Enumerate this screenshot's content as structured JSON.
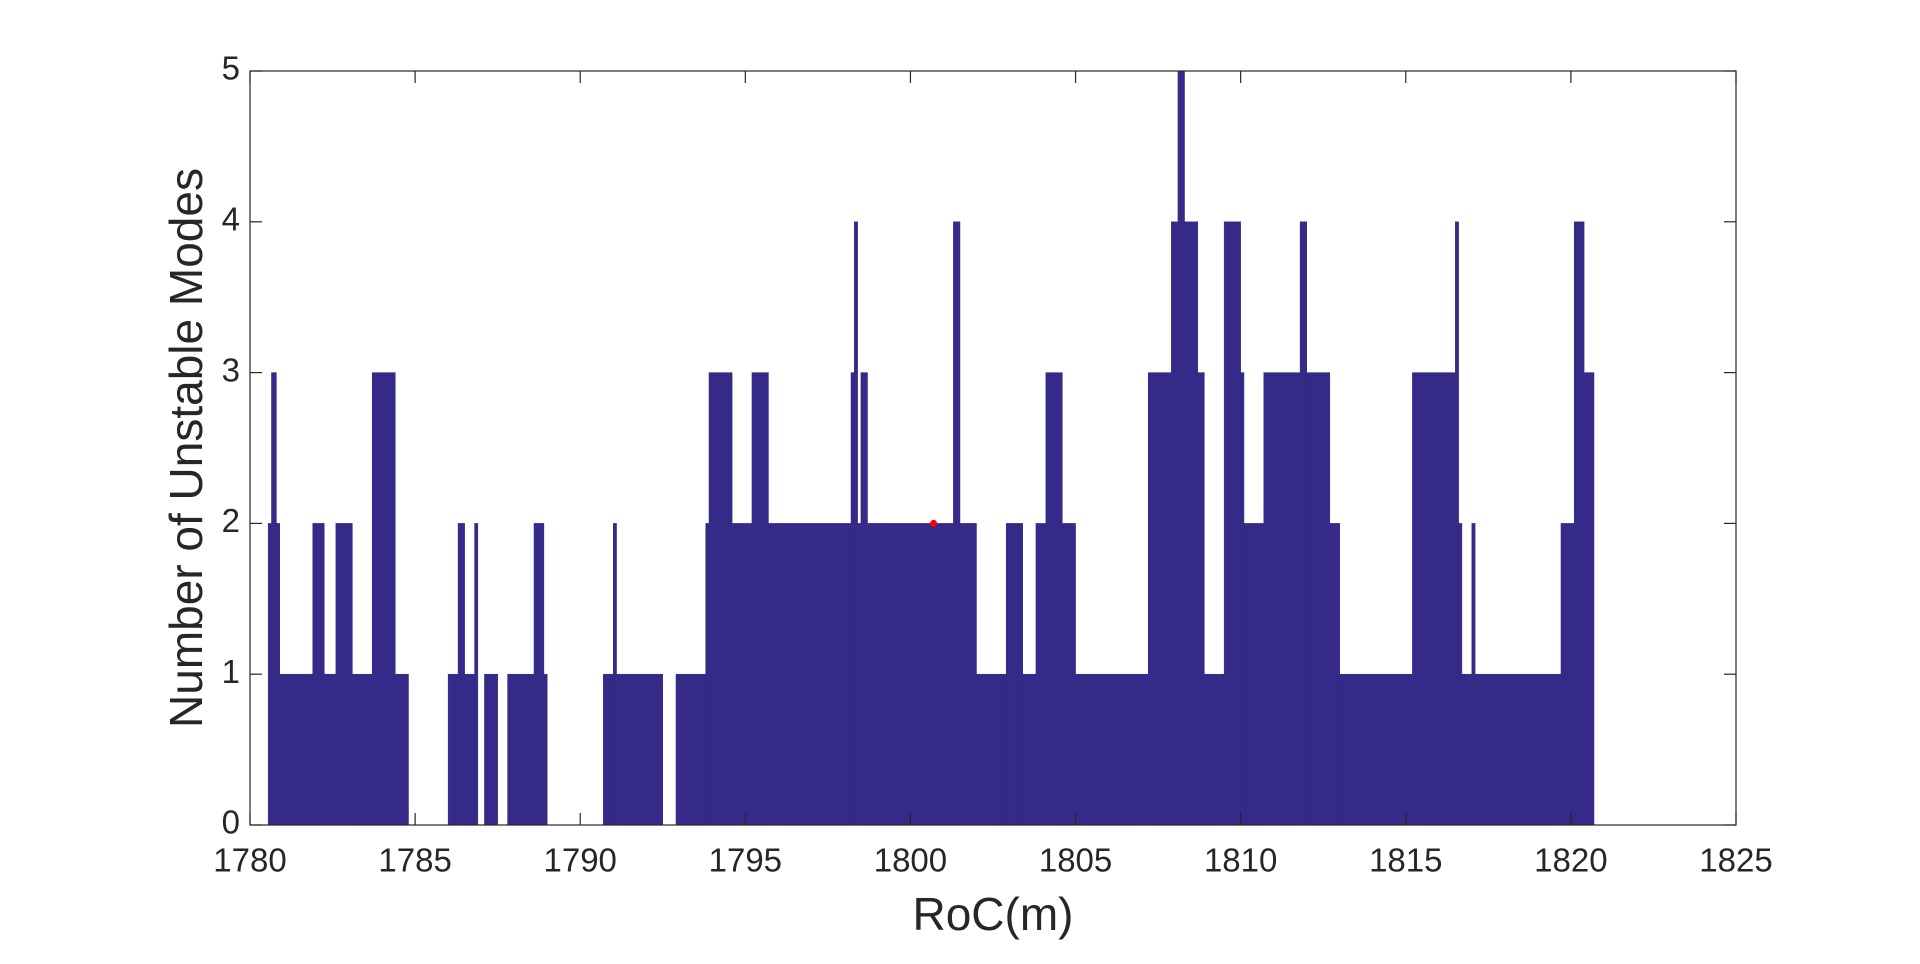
{
  "chart_data": {
    "type": "histogram",
    "xlabel": "RoC(m)",
    "ylabel": "Number of Unstable Modes",
    "bins": [
      1780.55,
      1780.65,
      1780.8,
      1780.9,
      1781.9,
      1782.25,
      1782.6,
      1783.1,
      1783.7,
      1784.4,
      1784.8,
      1786.0,
      1786.3,
      1786.5,
      1786.8,
      1786.9,
      1787.1,
      1787.5,
      1787.8,
      1788.6,
      1788.9,
      1789.0,
      1790.7,
      1791.0,
      1791.1,
      1792.5,
      1792.9,
      1793.8,
      1793.9,
      1794.6,
      1795.2,
      1795.7,
      1798.2,
      1798.3,
      1798.4,
      1798.5,
      1798.7,
      1801.3,
      1801.5,
      1802.0,
      1802.9,
      1803.4,
      1803.8,
      1804.1,
      1804.6,
      1805.0,
      1807.2,
      1807.9,
      1808.1,
      1808.3,
      1808.7,
      1808.9,
      1809.5,
      1810.0,
      1810.1,
      1810.7,
      1811.8,
      1812.0,
      1812.7,
      1813.0,
      1815.2,
      1816.5,
      1816.6,
      1816.7,
      1817.0,
      1817.1,
      1819.7,
      1820.1,
      1820.4,
      1820.7
    ],
    "counts": [
      2,
      3,
      2,
      1,
      2,
      1,
      2,
      1,
      3,
      1,
      0,
      1,
      2,
      1,
      2,
      0,
      1,
      0,
      1,
      2,
      1,
      0,
      1,
      2,
      1,
      0,
      1,
      2,
      3,
      2,
      3,
      2,
      3,
      4,
      2,
      3,
      2,
      4,
      2,
      1,
      2,
      1,
      2,
      3,
      2,
      1,
      3,
      4,
      5,
      4,
      3,
      1,
      4,
      3,
      2,
      3,
      4,
      3,
      2,
      1,
      3,
      4,
      2,
      1,
      2,
      1,
      2,
      4,
      3
    ],
    "color": "#352a87",
    "marker": {
      "x": 1800.7,
      "y": 2,
      "color": "#ff0000"
    },
    "xlim": [
      1780,
      1825
    ],
    "xticks": [
      1780,
      1785,
      1790,
      1795,
      1800,
      1805,
      1810,
      1815,
      1820,
      1825
    ],
    "ylim": [
      0,
      5
    ],
    "yticks": [
      0,
      1,
      2,
      3,
      4,
      5
    ]
  }
}
